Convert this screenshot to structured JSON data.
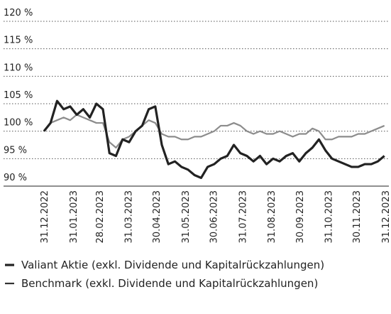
{
  "chart_data": {
    "type": "line",
    "x": [
      "31.12.2022",
      "07.01.2023",
      "14.01.2023",
      "21.01.2023",
      "28.01.2023",
      "04.02.2023",
      "11.02.2023",
      "18.02.2023",
      "25.02.2023",
      "04.03.2023",
      "11.03.2023",
      "18.03.2023",
      "25.03.2023",
      "01.04.2023",
      "08.04.2023",
      "15.04.2023",
      "22.04.2023",
      "29.04.2023",
      "06.05.2023",
      "13.05.2023",
      "20.05.2023",
      "27.05.2023",
      "03.06.2023",
      "10.06.2023",
      "17.06.2023",
      "24.06.2023",
      "01.07.2023",
      "08.07.2023",
      "15.07.2023",
      "22.07.2023",
      "29.07.2023",
      "05.08.2023",
      "12.08.2023",
      "19.08.2023",
      "26.08.2023",
      "02.09.2023",
      "09.09.2023",
      "16.09.2023",
      "23.09.2023",
      "30.09.2023",
      "07.10.2023",
      "14.10.2023",
      "21.10.2023",
      "28.10.2023",
      "04.11.2023",
      "11.11.2023",
      "18.11.2023",
      "25.11.2023",
      "02.12.2023",
      "09.12.2023",
      "16.12.2023",
      "23.12.2023",
      "30.12.2023"
    ],
    "series": [
      {
        "name": "Valiant Aktie (exkl. Dividende und Kapitalrückzahlungen)",
        "color": "#222222",
        "width": 3.2,
        "values": [
          100,
          101.5,
          105.5,
          104,
          104.5,
          103,
          104,
          102.5,
          105,
          104,
          96,
          95.5,
          98.5,
          98,
          100,
          101,
          104,
          104.5,
          97.5,
          94,
          94.5,
          93.5,
          93,
          92,
          91.5,
          93.5,
          94,
          95,
          95.5,
          97.5,
          96,
          95.5,
          94.5,
          95.5,
          94,
          95,
          94.5,
          95.5,
          96,
          94.5,
          96,
          97,
          98.5,
          96.5,
          95,
          94.5,
          94,
          93.5,
          93.5,
          94,
          94,
          94.5,
          95.5
        ]
      },
      {
        "name": "Benchmark (exkl. Dividende und Kapitalrückzahlungen)",
        "color": "#8c8c8c",
        "width": 2.2,
        "values": [
          100,
          101.5,
          102,
          102.5,
          102,
          103,
          102.5,
          102,
          101.5,
          101.5,
          98,
          97,
          98.5,
          99,
          100,
          101,
          102,
          101.5,
          99.5,
          99,
          99,
          98.5,
          98.5,
          99,
          99,
          99.5,
          100,
          101,
          101,
          101.5,
          101,
          100,
          99.5,
          100,
          99.5,
          99.5,
          100,
          99.5,
          99,
          99.5,
          99.5,
          100.5,
          100,
          98.5,
          98.5,
          99,
          99,
          99,
          99.5,
          99.5,
          100,
          100.5,
          101
        ]
      }
    ],
    "xlim": [
      "31.12.2022",
      "31.12.2023"
    ],
    "xticks": [
      "31.12.2022",
      "31.01.2023",
      "28.02.2023",
      "31.03.2023",
      "30.04.2023",
      "31.05.2023",
      "30.06.2023",
      "31.07.2023",
      "31.08.2023",
      "30.09.2023",
      "31.10.2023",
      "30.11.2023",
      "31.12.2023"
    ],
    "ylim": [
      90,
      120
    ],
    "yticks": [
      {
        "value": 90,
        "label": "90 %"
      },
      {
        "value": 95,
        "label": "95 %"
      },
      {
        "value": 100,
        "label": "100 %"
      },
      {
        "value": 105,
        "label": "105 %"
      },
      {
        "value": 110,
        "label": "110 %"
      },
      {
        "value": 115,
        "label": "115 %"
      },
      {
        "value": 120,
        "label": "120 %"
      }
    ],
    "grid": true
  }
}
